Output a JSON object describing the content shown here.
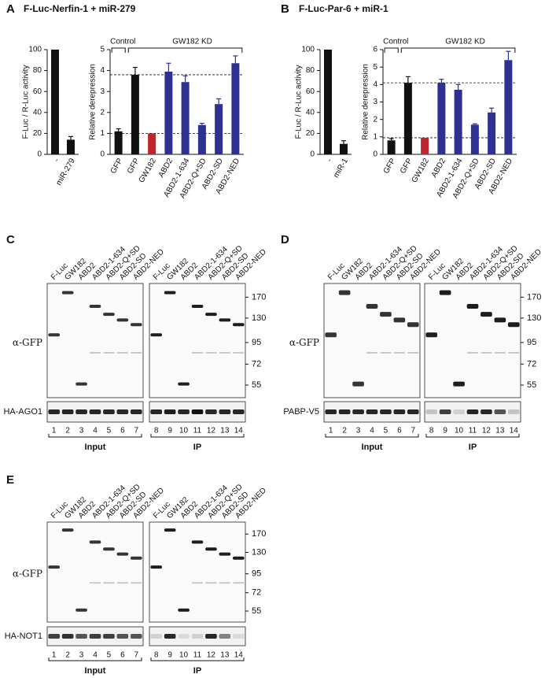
{
  "panels": [
    {
      "letter": "A",
      "title": "F-Luc-Nerfin-1 + miR-279"
    },
    {
      "letter": "B",
      "title": "F-Luc-Par-6 + miR-1"
    },
    {
      "letter": "C"
    },
    {
      "letter": "D"
    },
    {
      "letter": "E"
    }
  ],
  "chart_data": [
    {
      "type": "bar",
      "ylabel": "F-Luc / R-Luc activity",
      "categories": [
        "-",
        "miR-279"
      ],
      "values": [
        100,
        14
      ],
      "errors": [
        null,
        3
      ],
      "colors": [
        "#111111",
        "#111111"
      ],
      "ylim": [
        0,
        100
      ],
      "yticks": [
        0,
        20,
        40,
        60,
        80,
        100
      ]
    },
    {
      "type": "bar",
      "ylabel": "Relative derepression",
      "categories": [
        "GFP",
        "GFP",
        "GW182",
        "ABD2",
        "ABD2-1-634",
        "ABD2-Q+SD",
        "ABD2-SD",
        "ABD2-NED"
      ],
      "values": [
        1.1,
        3.8,
        1.0,
        3.95,
        3.45,
        1.4,
        2.4,
        4.35
      ],
      "errors": [
        0.12,
        0.35,
        null,
        0.4,
        0.3,
        0.08,
        0.25,
        0.35
      ],
      "colors": [
        "#111111",
        "#111111",
        "#c0262d",
        "#2e3192",
        "#2e3192",
        "#2e3192",
        "#2e3192",
        "#2e3192"
      ],
      "ylim": [
        0,
        5
      ],
      "yticks": [
        0,
        1,
        2,
        3,
        4,
        5
      ],
      "annotations": [
        "Control",
        "GW182 KD"
      ],
      "dashed_reference": true
    },
    {
      "type": "bar",
      "ylabel": "F-Luc / R-Luc activity",
      "categories": [
        "-",
        "miR-1"
      ],
      "values": [
        100,
        10
      ],
      "errors": [
        null,
        3
      ],
      "colors": [
        "#111111",
        "#111111"
      ],
      "ylim": [
        0,
        100
      ],
      "yticks": [
        0,
        20,
        40,
        60,
        80,
        100
      ]
    },
    {
      "type": "bar",
      "ylabel": "Relative derepression",
      "categories": [
        "GFP",
        "GFP",
        "GW182",
        "ABD2",
        "ABD2-1-634",
        "ABD2-Q+SD",
        "ABD2-SD",
        "ABD2-NED"
      ],
      "values": [
        0.8,
        4.1,
        0.95,
        4.1,
        3.7,
        1.7,
        2.4,
        5.4
      ],
      "errors": [
        0.1,
        0.35,
        null,
        0.2,
        0.3,
        0.05,
        0.25,
        0.5
      ],
      "colors": [
        "#111111",
        "#111111",
        "#c0262d",
        "#2e3192",
        "#2e3192",
        "#2e3192",
        "#2e3192",
        "#2e3192"
      ],
      "ylim": [
        0,
        6
      ],
      "yticks": [
        0,
        1,
        2,
        3,
        4,
        5,
        6
      ],
      "annotations": [
        "Control",
        "GW182 KD"
      ],
      "dashed_reference": true
    }
  ],
  "blots": [
    {
      "lanes": [
        "F-Luc",
        "GW182",
        "ABD2",
        "ABD2-1-634",
        "ABD2-Q+SD",
        "ABD2-SD",
        "ABD2-NED"
      ],
      "markers": [
        170,
        130,
        95,
        72,
        55
      ],
      "upper_label": "α-GFP",
      "lower_label": "HA-AGO1",
      "lane_numbers": [
        1,
        2,
        3,
        4,
        5,
        6,
        7,
        8,
        9,
        10,
        11,
        12,
        13,
        14
      ],
      "groups": [
        "Input",
        "IP"
      ]
    },
    {
      "lanes": [
        "F-Luc",
        "GW182",
        "ABD2",
        "ABD2-1-634",
        "ABD2-Q+SD",
        "ABD2-SD",
        "ABD2-NED"
      ],
      "markers": [
        170,
        130,
        95,
        72,
        55
      ],
      "upper_label": "α-GFP",
      "lower_label": "PABP-V5",
      "lane_numbers": [
        1,
        2,
        3,
        4,
        5,
        6,
        7,
        8,
        9,
        10,
        11,
        12,
        13,
        14
      ],
      "groups": [
        "Input",
        "IP"
      ]
    },
    {
      "lanes": [
        "F-Luc",
        "GW182",
        "ABD2",
        "ABD2-1-634",
        "ABD2-Q+SD",
        "ABD2-SD",
        "ABD2-NED"
      ],
      "markers": [
        170,
        130,
        95,
        72,
        55
      ],
      "upper_label": "α-GFP",
      "lower_label": "HA-NOT1",
      "lane_numbers": [
        1,
        2,
        3,
        4,
        5,
        6,
        7,
        8,
        9,
        10,
        11,
        12,
        13,
        14
      ],
      "groups": [
        "Input",
        "IP"
      ]
    }
  ]
}
